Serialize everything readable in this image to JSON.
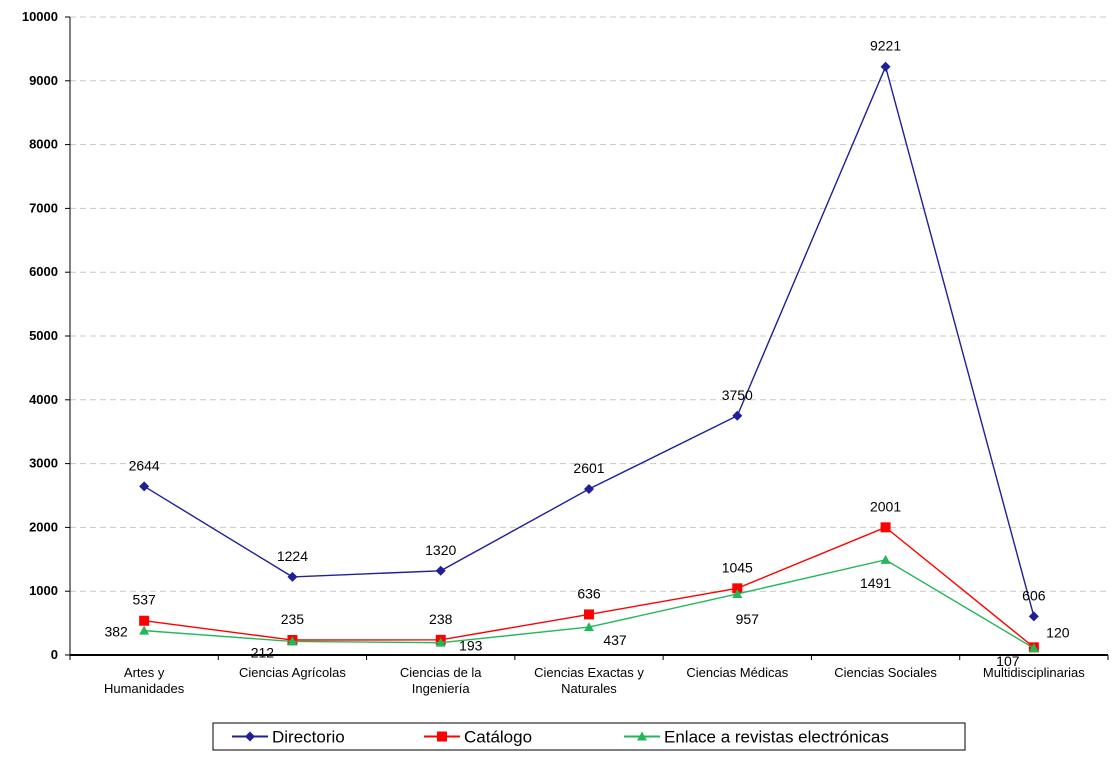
{
  "chart_data": {
    "type": "line",
    "categories": [
      "Artes y|Humanidades",
      "Ciencias Agrícolas",
      "Ciencias de la|Ingeniería",
      "Ciencias Exactas y|Naturales",
      "Ciencias Médicas",
      "Ciencias Sociales",
      "Multidisciplinarias"
    ],
    "series": [
      {
        "name": "Directorio",
        "values": [
          2644,
          1224,
          1320,
          2601,
          3750,
          9221,
          606
        ],
        "color": "#1f1f9a",
        "marker": "diamond"
      },
      {
        "name": "Catálogo",
        "values": [
          537,
          235,
          238,
          636,
          1045,
          2001,
          120
        ],
        "color": "#ff0000",
        "marker": "square"
      },
      {
        "name": "Enlace a revistas electrónicas",
        "values": [
          382,
          212,
          193,
          437,
          957,
          1491,
          107
        ],
        "color": "#22b85a",
        "marker": "triangle"
      }
    ],
    "ylim": [
      0,
      10000
    ],
    "yticks": [
      0,
      1000,
      2000,
      3000,
      4000,
      5000,
      6000,
      7000,
      8000,
      9000,
      10000
    ],
    "grid": true,
    "legend_position": "bottom"
  }
}
